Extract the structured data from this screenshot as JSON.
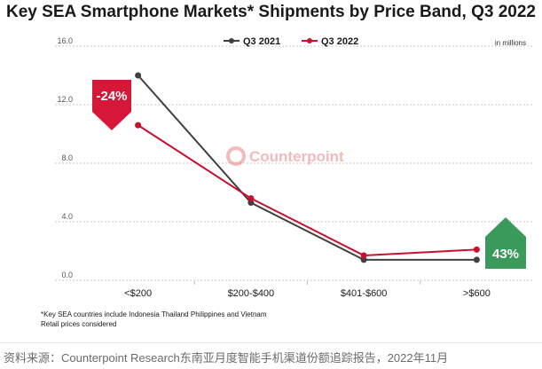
{
  "title": "Key SEA Smartphone Markets* Shipments by Price Band, Q3 2022",
  "units_note": "in millions",
  "watermark": "Counterpoint",
  "footnotes": [
    "*Key SEA countries include Indonesia Thailand Philippines and Vietnam",
    "Retail prices considered"
  ],
  "source_text": "资料来源：Counterpoint Research东南亚月度智能手机渠道份额追踪报告，2022年11月",
  "chart_data": {
    "type": "line",
    "categories": [
      "<$200",
      "$200-$400",
      "$401-$600",
      ">$600"
    ],
    "y_ticks": [
      "0.0",
      "4.0",
      "8.0",
      "12.0",
      "16.0"
    ],
    "ylim": [
      0,
      16
    ],
    "legend_position": "top",
    "series": [
      {
        "name": "Q3 2021",
        "color": "#404040",
        "values": [
          14.0,
          5.3,
          1.4,
          1.4
        ]
      },
      {
        "name": "Q3 2022",
        "color": "#c8102e",
        "values": [
          10.6,
          5.6,
          1.7,
          2.1
        ]
      }
    ],
    "annotations": [
      {
        "label": "-24%",
        "category": "<$200",
        "direction": "down",
        "color": "#d6173a"
      },
      {
        "label": "43%",
        "category": ">$600",
        "direction": "up",
        "color": "#3a9a5b"
      }
    ]
  }
}
